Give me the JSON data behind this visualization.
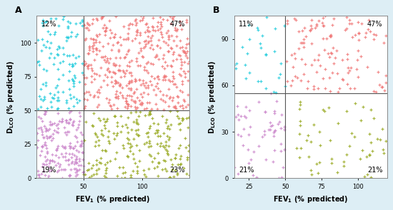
{
  "panel_A": {
    "label": "A",
    "x_threshold": 50,
    "y_threshold": 50,
    "xlim": [
      10,
      140
    ],
    "ylim": [
      0,
      120
    ],
    "xticks": [
      50,
      100
    ],
    "yticks": [
      0,
      25,
      50,
      75,
      100
    ],
    "quadrant_labels": {
      "TL": "12%",
      "TR": "47%",
      "BL": "19%",
      "BR": "23%"
    },
    "colors": {
      "TL": "#22ccdd",
      "TR": "#f07878",
      "BL": "#cc88cc",
      "BR": "#99aa22"
    },
    "n_TL": 120,
    "n_TR": 470,
    "n_BL": 190,
    "n_BR": 230,
    "seed": 42
  },
  "panel_B": {
    "label": "B",
    "x_threshold": 50,
    "y_threshold": 55,
    "xlim": [
      15,
      120
    ],
    "ylim": [
      0,
      105
    ],
    "xticks": [
      25,
      50,
      75,
      100
    ],
    "yticks": [
      0,
      30,
      60,
      90
    ],
    "quadrant_labels": {
      "TL": "11%",
      "TR": "47%",
      "BL": "21%",
      "BR": "21%"
    },
    "colors": {
      "TL": "#22ccdd",
      "TR": "#f07878",
      "BL": "#cc88cc",
      "BR": "#99aa22"
    },
    "n_TL": 30,
    "n_TR": 130,
    "n_BL": 58,
    "n_BR": 58,
    "seed": 7
  },
  "figure_bg": "#ddeef5",
  "plot_bg": "#ffffff",
  "marker_size": 8,
  "line_color": "#555555",
  "line_width": 0.8,
  "font_size_label": 7,
  "font_size_pct": 7,
  "font_size_panel": 9
}
